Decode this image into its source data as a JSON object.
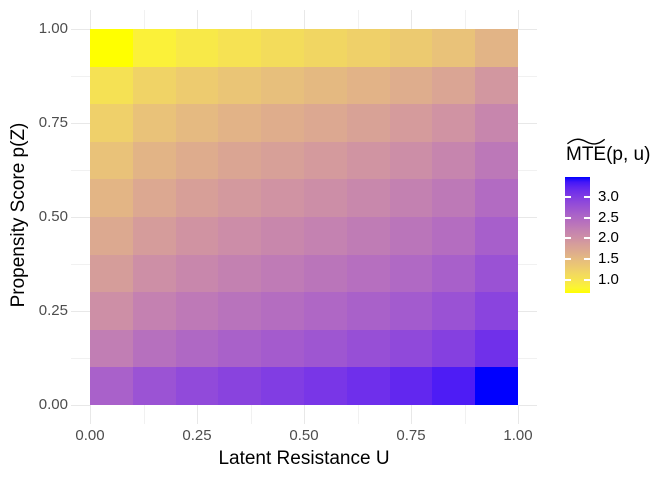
{
  "chart_data": {
    "type": "heatmap",
    "title": "",
    "xlabel": "Latent Resistance U",
    "ylabel": "Propensity Score p(Z)",
    "legend_title": {
      "base": "MTE",
      "accent": "widetilde",
      "suffix": "(p, u)"
    },
    "x_axis": {
      "breaks": [
        0,
        0.25,
        0.5,
        0.75,
        1
      ],
      "labels": [
        "0.00",
        "0.25",
        "0.50",
        "0.75",
        "1.00"
      ],
      "minor_breaks": [
        0.125,
        0.375,
        0.625,
        0.875
      ],
      "range": [
        0,
        1
      ]
    },
    "y_axis": {
      "breaks": [
        0,
        0.25,
        0.5,
        0.75,
        1
      ],
      "labels": [
        "0.00",
        "0.25",
        "0.50",
        "0.75",
        "1.00"
      ],
      "minor_breaks": [
        0.125,
        0.375,
        0.625,
        0.875
      ],
      "range": [
        0,
        1
      ]
    },
    "u_centers": [
      0.05,
      0.15,
      0.25,
      0.35,
      0.45,
      0.55,
      0.65,
      0.75,
      0.85,
      0.95
    ],
    "p_centers": [
      0.95,
      0.85,
      0.75,
      0.65,
      0.55,
      0.45,
      0.35,
      0.25,
      0.15,
      0.05
    ],
    "values": [
      [
        0.679,
        0.845,
        0.945,
        1.024,
        1.095,
        1.163,
        1.234,
        1.314,
        1.413,
        1.579
      ],
      [
        1.032,
        1.199,
        1.298,
        1.377,
        1.448,
        1.517,
        1.588,
        1.667,
        1.766,
        1.932
      ],
      [
        1.242,
        1.409,
        1.508,
        1.587,
        1.658,
        1.727,
        1.798,
        1.877,
        1.976,
        2.142
      ],
      [
        1.41,
        1.577,
        1.676,
        1.755,
        1.826,
        1.895,
        1.966,
        2.045,
        2.144,
        2.31
      ],
      [
        1.561,
        1.727,
        1.827,
        1.906,
        1.977,
        2.045,
        2.116,
        2.196,
        2.295,
        2.461
      ],
      [
        1.707,
        1.873,
        1.973,
        2.052,
        2.123,
        2.191,
        2.262,
        2.342,
        2.441,
        2.607
      ],
      [
        1.858,
        2.024,
        2.123,
        2.202,
        2.273,
        2.342,
        2.413,
        2.492,
        2.591,
        2.758
      ],
      [
        2.026,
        2.192,
        2.291,
        2.37,
        2.441,
        2.51,
        2.581,
        2.66,
        2.759,
        2.926
      ],
      [
        2.236,
        2.402,
        2.501,
        2.58,
        2.651,
        2.72,
        2.791,
        2.87,
        2.969,
        3.136
      ],
      [
        2.589,
        2.755,
        2.855,
        2.934,
        3.005,
        3.073,
        3.144,
        3.224,
        3.323,
        3.489
      ]
    ],
    "fill_scale": {
      "low": "#FFFF00",
      "high": "#0000FF",
      "interpolation": "lab",
      "limits": [
        0.679,
        3.489
      ],
      "legend_breaks": [
        3.0,
        2.5,
        2.0,
        1.5,
        1.0
      ],
      "legend_labels": [
        "3.0",
        "2.5",
        "2.0",
        "1.5",
        "1.0"
      ]
    },
    "theme": {
      "background": "#FFFFFF",
      "grid_major": "#E8E8E8",
      "grid_minor": "#F1F1F1",
      "axis_text_color": "#4D4D4D",
      "title_color": "#000000",
      "legend_text_color": "#000000",
      "legend_tick_color": "#FFFFFF"
    }
  }
}
